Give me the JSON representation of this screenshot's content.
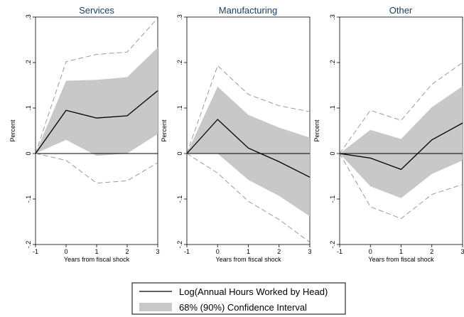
{
  "figure": {
    "legend": {
      "line_label": "Log(Annual Hours Worked by Head)",
      "band_label": "68% (90%) Confidence Interval",
      "placement": "bottom-center"
    },
    "colors": {
      "band68": "#c8c8c8",
      "line": "#000000",
      "ci90": "#9a9a9a",
      "title": "#1a3c5e"
    }
  },
  "chart_data": [
    {
      "type": "area",
      "title": "Services",
      "xlabel": "Years from fiscal shock",
      "ylabel": "Percent",
      "x": [
        -1,
        0,
        1,
        2,
        3
      ],
      "xticks": [
        "-1",
        "0",
        "1",
        "2",
        "3"
      ],
      "yticks": [
        "-.2",
        "-.1",
        "0",
        ".1",
        ".2",
        ".3"
      ],
      "xlim": [
        -1,
        3
      ],
      "ylim": [
        -0.2,
        0.3
      ],
      "show_xlabel": true,
      "series": [
        {
          "role": "point",
          "values": [
            0,
            0.095,
            0.078,
            0.083,
            0.138
          ]
        },
        {
          "role": "ci68_lower",
          "values": [
            0,
            0.03,
            -0.005,
            0.0,
            0.043
          ]
        },
        {
          "role": "ci68_upper",
          "values": [
            0,
            0.16,
            0.162,
            0.168,
            0.233
          ]
        },
        {
          "role": "ci90_lower",
          "values": [
            0,
            -0.015,
            -0.065,
            -0.06,
            -0.02
          ]
        },
        {
          "role": "ci90_upper",
          "values": [
            0,
            0.202,
            0.218,
            0.223,
            0.298
          ]
        }
      ]
    },
    {
      "type": "area",
      "title": "Manufacturing",
      "xlabel": "Years from fiscal shock",
      "ylabel": "Percent",
      "x": [
        -1,
        0,
        1,
        2,
        3
      ],
      "xticks": [
        "-1",
        "0",
        "1",
        "2",
        "3"
      ],
      "yticks": [
        "-.2",
        "-.1",
        "0",
        ".1",
        ".2",
        ".3"
      ],
      "xlim": [
        -1,
        3
      ],
      "ylim": [
        -0.2,
        0.3
      ],
      "show_xlabel": true,
      "series": [
        {
          "role": "point",
          "values": [
            0,
            0.075,
            0.012,
            -0.018,
            -0.052
          ]
        },
        {
          "role": "ci68_lower",
          "values": [
            0,
            0.0,
            -0.058,
            -0.093,
            -0.138
          ]
        },
        {
          "role": "ci68_upper",
          "values": [
            0,
            0.147,
            0.085,
            0.057,
            0.035
          ]
        },
        {
          "role": "ci90_lower",
          "values": [
            0,
            -0.043,
            -0.105,
            -0.145,
            -0.195
          ]
        },
        {
          "role": "ci90_upper",
          "values": [
            0,
            0.193,
            0.13,
            0.105,
            0.092
          ]
        }
      ]
    },
    {
      "type": "area",
      "title": "Other",
      "xlabel": "Years from fiscal shock",
      "ylabel": "Percent",
      "x": [
        -1,
        0,
        1,
        2,
        3
      ],
      "xticks": [
        "-1",
        "0",
        "1",
        "2",
        "3"
      ],
      "yticks": [
        "-.2",
        "-.1",
        "0",
        ".1",
        ".2",
        ".3"
      ],
      "xlim": [
        -1,
        3
      ],
      "ylim": [
        -0.2,
        0.3
      ],
      "show_xlabel": true,
      "series": [
        {
          "role": "point",
          "values": [
            0,
            -0.01,
            -0.035,
            0.03,
            0.067
          ]
        },
        {
          "role": "ci68_lower",
          "values": [
            0,
            -0.072,
            -0.098,
            -0.045,
            -0.015
          ]
        },
        {
          "role": "ci68_upper",
          "values": [
            0,
            0.052,
            0.032,
            0.102,
            0.148
          ]
        },
        {
          "role": "ci90_lower",
          "values": [
            0,
            -0.117,
            -0.143,
            -0.09,
            -0.068
          ]
        },
        {
          "role": "ci90_upper",
          "values": [
            0,
            0.095,
            0.073,
            0.152,
            0.2
          ]
        }
      ]
    }
  ]
}
